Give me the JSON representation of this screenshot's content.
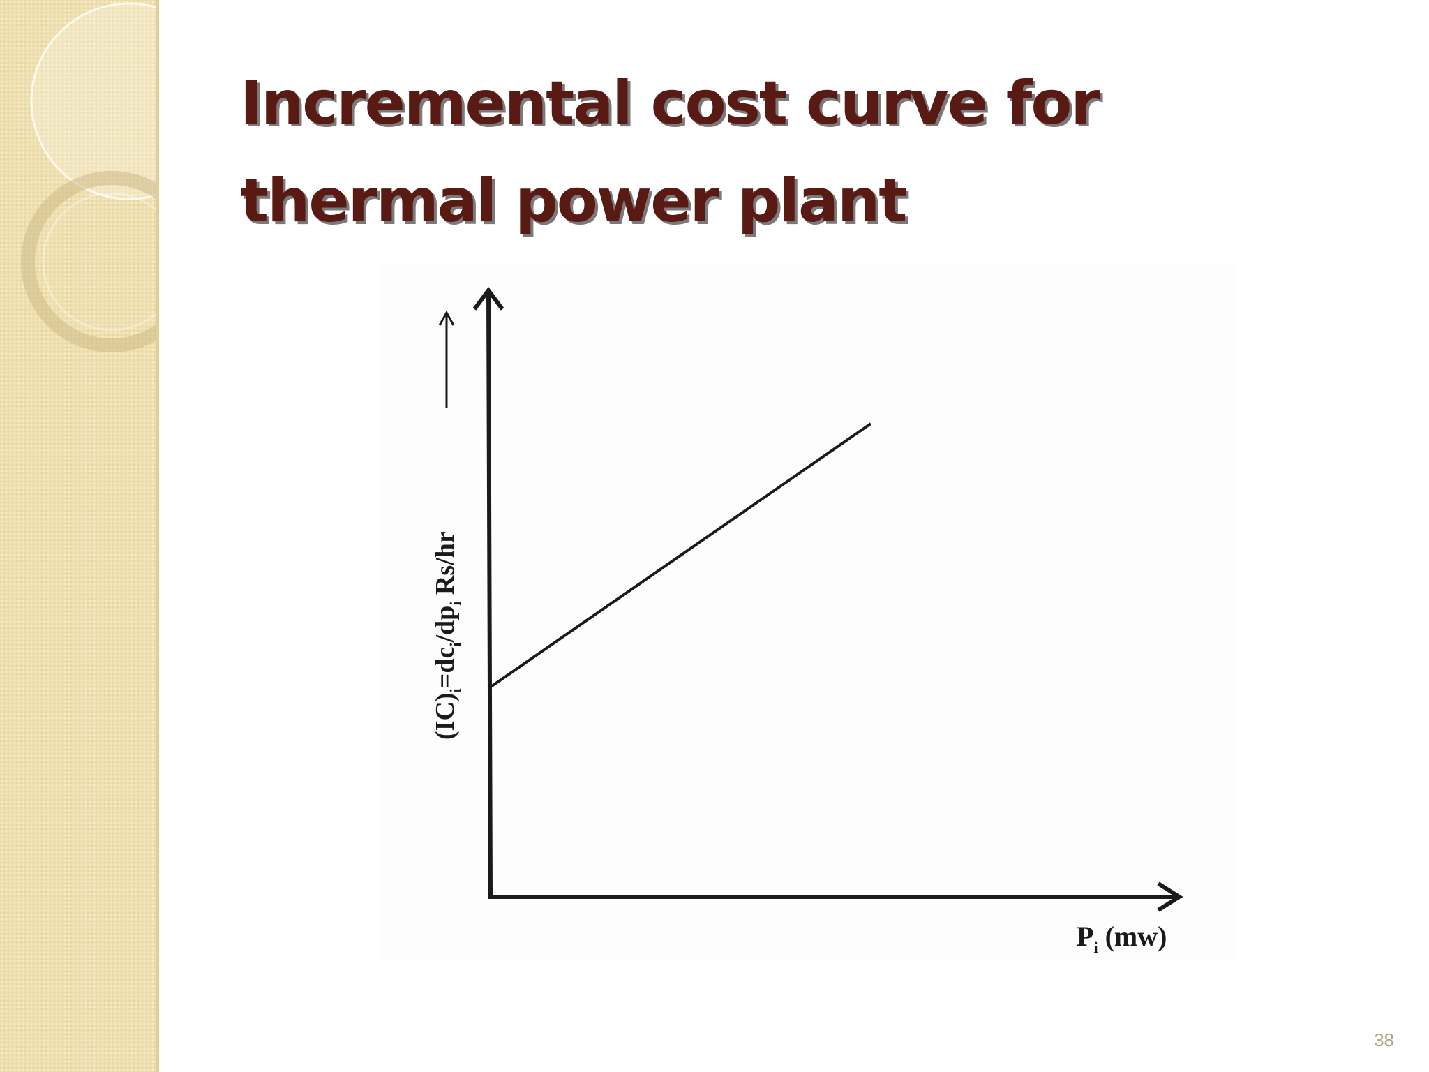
{
  "slide": {
    "title_line1": "Incremental cost curve for",
    "title_line2": "thermal power plant",
    "page_number": "38"
  },
  "colors": {
    "title": "#5a1a14",
    "title_shadow": "#7a7a7a",
    "side_panel": "#efe0b0",
    "page_number": "#b2a27a",
    "axis": "#1a1a1a"
  },
  "diagram": {
    "y_axis_label": {
      "prefix": "(IC)",
      "sub1": "i",
      "mid": "=dc",
      "sub2": "i",
      "mid2": "/dp",
      "sub3": "i",
      "suffix": " Rs/hr"
    },
    "x_axis_label": {
      "prefix": "P",
      "sub": "i",
      "suffix": " (mw)"
    },
    "curve": {
      "type": "line",
      "shape": "straight line with positive intercept on y-axis"
    }
  }
}
